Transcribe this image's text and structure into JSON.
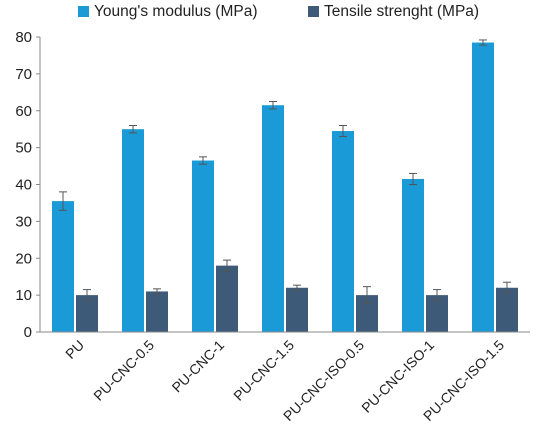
{
  "chart_data": {
    "type": "bar",
    "categories": [
      "PU",
      "PU-CNC-0.5",
      "PU-CNC-1",
      "PU-CNC-1.5",
      "PU-CNC-ISO-0.5",
      "PU-CNC-ISO-1",
      "PU-CNC-ISO-1.5"
    ],
    "series": [
      {
        "name": "Young's modulus (MPa)",
        "color": "#1a9bd7",
        "values": [
          35.5,
          55,
          46.5,
          61.5,
          54.5,
          41.5,
          78.5
        ],
        "errors": [
          2.5,
          1,
          1,
          1,
          1.5,
          1.5,
          0.7
        ]
      },
      {
        "name": "Tensile strenght (MPa)",
        "color": "#3d5a78",
        "values": [
          10,
          11,
          18,
          12,
          10,
          10,
          12
        ],
        "errors": [
          1.5,
          0.7,
          1.5,
          0.7,
          2.3,
          1.5,
          1.5
        ]
      }
    ],
    "title": "",
    "xlabel": "",
    "ylabel": "",
    "ylim": [
      0,
      80
    ],
    "yticks": [
      0,
      10,
      20,
      30,
      40,
      50,
      60,
      70,
      80
    ],
    "grid": false,
    "legend_position": "top"
  }
}
